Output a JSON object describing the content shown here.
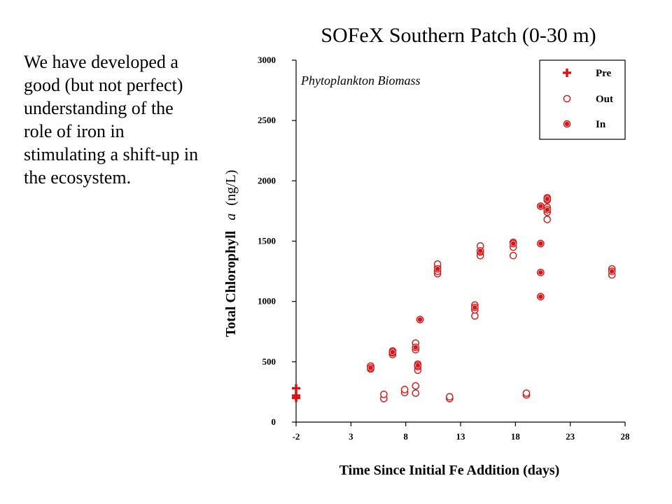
{
  "side_text": "We have developed a good (but not perfect) understanding of the role of iron in stimulating a shift-up in the ecosystem.",
  "colors": {
    "marker": "#dd1111",
    "axis": "#000000",
    "background": "#ffffff"
  },
  "chart_data": {
    "type": "scatter",
    "title": "SOFeX Southern Patch (0-30 m)",
    "xlabel": "Time Since Initial Fe Addition (days)",
    "ylabel_parts": [
      "Total Chlorophyll",
      "a",
      "(ng/L)"
    ],
    "annotation": "Phytoplankton Biomass",
    "xlim": [
      -2,
      28
    ],
    "ylim": [
      0,
      3000
    ],
    "xticks": [
      -2,
      3,
      8,
      13,
      18,
      23,
      28
    ],
    "yticks": [
      0,
      500,
      1000,
      1500,
      2000,
      2500,
      3000
    ],
    "grid": false,
    "legend_position": "top-right",
    "series": [
      {
        "name": "Pre",
        "marker": "cross",
        "points": [
          [
            -2,
            280
          ],
          [
            -2,
            220
          ],
          [
            -2,
            200
          ]
        ]
      },
      {
        "name": "Out",
        "marker": "open-circle",
        "points": [
          [
            4.8,
            440
          ],
          [
            4.8,
            455
          ],
          [
            4.8,
            465
          ],
          [
            6,
            195
          ],
          [
            6,
            230
          ],
          [
            6.8,
            560
          ],
          [
            6.8,
            575
          ],
          [
            6.8,
            590
          ],
          [
            7.9,
            245
          ],
          [
            7.9,
            270
          ],
          [
            8.9,
            240
          ],
          [
            8.9,
            300
          ],
          [
            8.9,
            600
          ],
          [
            8.9,
            655
          ],
          [
            9.1,
            430
          ],
          [
            9.1,
            460
          ],
          [
            9.1,
            480
          ],
          [
            9.3,
            850
          ],
          [
            10.9,
            1230
          ],
          [
            10.9,
            1250
          ],
          [
            10.9,
            1280
          ],
          [
            10.9,
            1310
          ],
          [
            12,
            195
          ],
          [
            12,
            210
          ],
          [
            14.3,
            880
          ],
          [
            14.3,
            930
          ],
          [
            14.3,
            970
          ],
          [
            14.8,
            1380
          ],
          [
            14.8,
            1410
          ],
          [
            14.8,
            1460
          ],
          [
            17.8,
            1380
          ],
          [
            17.8,
            1450
          ],
          [
            17.8,
            1490
          ],
          [
            19,
            225
          ],
          [
            19,
            240
          ],
          [
            20.3,
            1040
          ],
          [
            20.3,
            1240
          ],
          [
            20.3,
            1480
          ],
          [
            20.3,
            1790
          ],
          [
            20.9,
            1680
          ],
          [
            20.9,
            1740
          ],
          [
            20.9,
            1780
          ],
          [
            20.9,
            1840
          ],
          [
            20.9,
            1860
          ],
          [
            26.8,
            1220
          ],
          [
            26.8,
            1270
          ]
        ]
      },
      {
        "name": "In",
        "marker": "filled-circle",
        "points": [
          [
            4.8,
            450
          ],
          [
            6.8,
            580
          ],
          [
            8.9,
            620
          ],
          [
            9.1,
            470
          ],
          [
            9.3,
            850
          ],
          [
            10.9,
            1270
          ],
          [
            14.3,
            950
          ],
          [
            14.8,
            1420
          ],
          [
            17.8,
            1480
          ],
          [
            20.3,
            1040
          ],
          [
            20.3,
            1240
          ],
          [
            20.3,
            1480
          ],
          [
            20.3,
            1790
          ],
          [
            20.9,
            1760
          ],
          [
            20.9,
            1850
          ],
          [
            26.8,
            1250
          ]
        ]
      }
    ]
  }
}
